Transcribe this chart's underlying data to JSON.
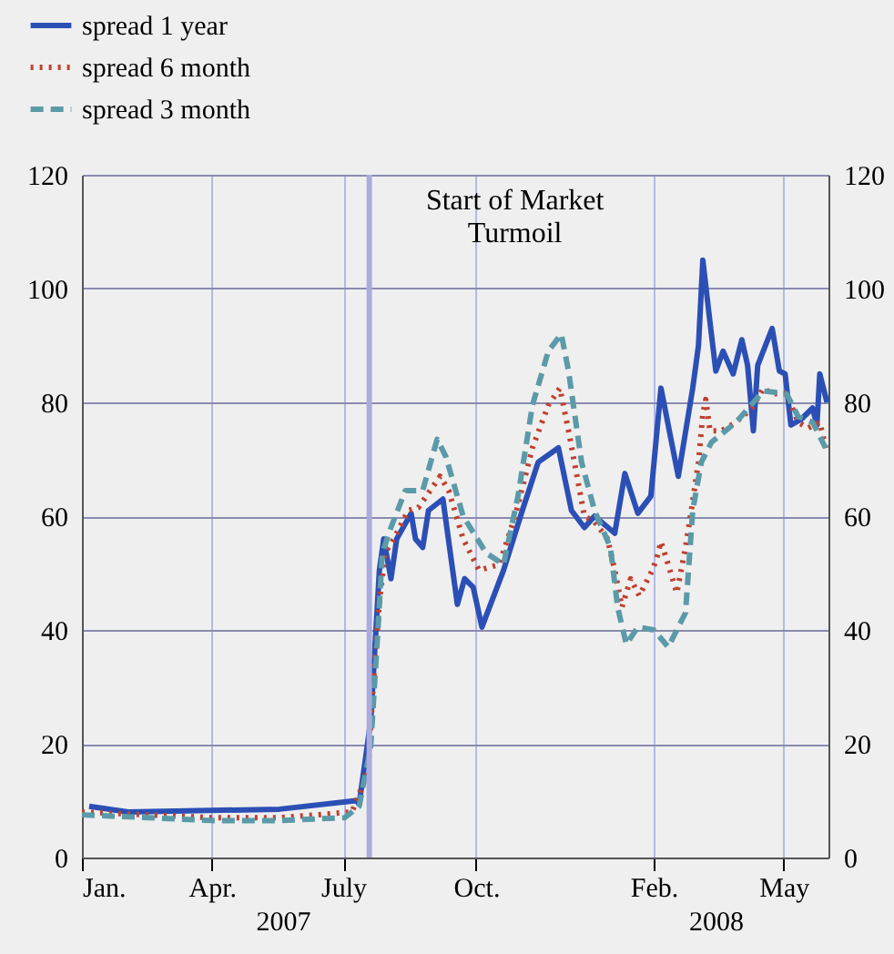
{
  "chart_data": {
    "type": "line",
    "xlim": [
      "2007-01-01",
      "2008-06-01"
    ],
    "xticks": [
      {
        "value": "2007-01-01",
        "label": "Jan."
      },
      {
        "value": "2007-04-01",
        "label": "Apr."
      },
      {
        "value": "2007-07-01",
        "label": "July"
      },
      {
        "value": "2007-10-01",
        "label": "Oct."
      },
      {
        "value": "2008-02-01",
        "label": "Feb."
      },
      {
        "value": "2008-05-01",
        "label": "May"
      }
    ],
    "ylim": [
      0,
      120
    ],
    "yticks": [
      0,
      20,
      40,
      60,
      80,
      100,
      120
    ],
    "y2lim": [
      0,
      120
    ],
    "y2ticks": [
      0,
      20,
      40,
      60,
      80,
      100,
      120
    ],
    "grid": true,
    "legend": "top left",
    "ref_lines": [
      {
        "axis": "x",
        "value": "2007-07-19",
        "label": "Start of Market\nTurmoil",
        "color": "#a9acdc"
      }
    ],
    "annotations": [
      "2007",
      "2008"
    ],
    "series": [
      {
        "name": "spread 1 year",
        "color": "#2b4fb5",
        "line_style": "solid",
        "x": [
          "2007-01-06",
          "2007-02-02",
          "2007-05-18",
          "2007-07-10",
          "2007-07-12",
          "2007-07-20",
          "2007-07-26",
          "2007-07-29",
          "2007-08-03",
          "2007-08-07",
          "2007-08-17",
          "2007-08-20",
          "2007-08-25",
          "2007-08-29",
          "2007-09-08",
          "2007-09-18",
          "2007-09-23",
          "2007-09-29",
          "2007-10-05",
          "2007-10-20",
          "2007-11-02",
          "2007-11-13",
          "2007-11-27",
          "2007-12-06",
          "2007-12-15",
          "2007-12-22",
          "2008-01-05",
          "2008-01-12",
          "2008-01-21",
          "2008-01-30",
          "2008-02-06",
          "2008-02-18",
          "2008-02-28",
          "2008-03-03",
          "2008-03-06",
          "2008-03-11",
          "2008-03-15",
          "2008-03-20",
          "2008-03-27",
          "2008-04-02",
          "2008-04-06",
          "2008-04-10",
          "2008-04-13",
          "2008-04-23",
          "2008-04-28",
          "2008-05-02",
          "2008-05-06",
          "2008-05-13",
          "2008-05-21",
          "2008-05-24",
          "2008-05-26",
          "2008-05-31"
        ],
        "values": [
          9,
          8,
          8.5,
          10,
          9.4,
          24,
          50.5,
          56,
          49,
          56,
          60.5,
          56,
          54.5,
          61,
          63,
          44.5,
          49,
          47.5,
          40.5,
          50.5,
          61,
          69.5,
          72,
          61,
          58,
          60,
          57,
          67.5,
          60.5,
          63.5,
          82.5,
          67,
          82.5,
          90,
          105,
          94,
          85.5,
          89,
          85,
          91,
          86.5,
          75,
          86.5,
          93,
          85.5,
          85,
          76,
          77,
          79,
          76,
          85,
          80
        ]
      },
      {
        "name": "spread 6 month",
        "color": "#c0402f",
        "line_style": "dotted",
        "x": [
          "2007-01-01",
          "2007-02-16",
          "2007-04-01",
          "2007-05-18",
          "2007-07-07",
          "2007-07-18",
          "2007-07-22",
          "2007-07-26",
          "2007-07-30",
          "2007-08-05",
          "2007-08-15",
          "2007-08-22",
          "2007-09-06",
          "2007-09-12",
          "2007-09-22",
          "2007-10-03",
          "2007-10-17",
          "2007-10-28",
          "2007-11-09",
          "2007-11-20",
          "2007-11-28",
          "2007-12-04",
          "2007-12-15",
          "2007-12-22",
          "2007-12-31",
          "2008-01-05",
          "2008-01-10",
          "2008-01-16",
          "2008-01-22",
          "2008-01-31",
          "2008-02-03",
          "2008-02-06",
          "2008-02-11",
          "2008-02-14",
          "2008-02-17",
          "2008-02-23",
          "2008-02-27",
          "2008-03-03",
          "2008-03-06",
          "2008-03-08",
          "2008-03-11",
          "2008-03-19",
          "2008-03-29",
          "2008-04-09",
          "2008-04-17",
          "2008-04-23",
          "2008-05-03",
          "2008-05-11",
          "2008-05-18",
          "2008-05-26",
          "2008-05-31"
        ],
        "values": [
          8,
          7.5,
          7,
          7,
          8,
          15,
          31.5,
          45,
          53.5,
          56,
          61,
          61.5,
          67,
          64.5,
          56,
          50.5,
          51.5,
          60,
          72,
          79.5,
          82.5,
          75,
          60,
          59,
          56,
          50.5,
          44,
          49,
          46,
          50.5,
          52.5,
          55.5,
          51.5,
          49,
          46.5,
          54.5,
          61,
          69.5,
          78,
          80.5,
          75,
          75,
          76.5,
          79,
          82.5,
          81.5,
          81.5,
          76.5,
          75.5,
          76.5,
          71
        ]
      },
      {
        "name": "spread 3 month",
        "color": "#5b9aa8",
        "line_style": "dashed",
        "x": [
          "2007-01-01",
          "2007-02-16",
          "2007-04-01",
          "2007-05-18",
          "2007-07-02",
          "2007-07-12",
          "2007-07-20",
          "2007-07-25",
          "2007-07-28",
          "2007-08-03",
          "2007-08-13",
          "2007-08-25",
          "2007-09-04",
          "2007-09-10",
          "2007-09-22",
          "2007-10-08",
          "2007-10-20",
          "2007-10-30",
          "2007-11-09",
          "2007-11-20",
          "2007-11-29",
          "2007-12-04",
          "2007-12-13",
          "2007-12-22",
          "2008-01-02",
          "2008-01-07",
          "2008-01-13",
          "2008-01-21",
          "2008-02-01",
          "2008-02-11",
          "2008-02-23",
          "2008-02-28",
          "2008-03-05",
          "2008-03-12",
          "2008-03-29",
          "2008-04-17",
          "2008-05-03",
          "2008-05-11",
          "2008-05-21",
          "2008-05-30"
        ],
        "values": [
          7.5,
          7,
          6.5,
          6.5,
          7,
          9,
          19.5,
          40,
          53.5,
          58,
          64.5,
          64.5,
          73.5,
          70.5,
          60,
          53.5,
          51.5,
          63.5,
          79.5,
          89,
          92,
          85.5,
          69.5,
          61,
          54.5,
          44,
          37.5,
          40.5,
          40,
          37,
          43,
          61,
          69.5,
          73,
          76.5,
          82,
          81.5,
          77.5,
          76.5,
          72
        ]
      }
    ]
  }
}
